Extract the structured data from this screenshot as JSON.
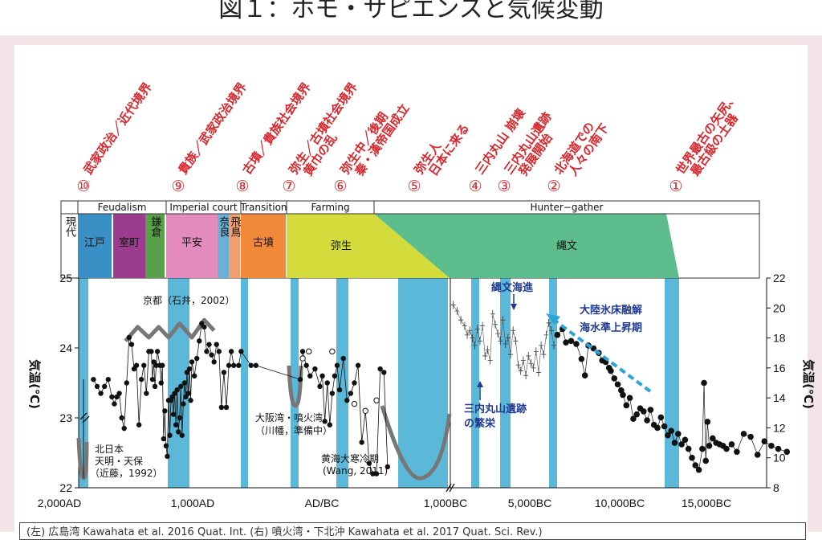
{
  "figure_title": "図１：ホモ・サピエンスと気候変動",
  "footer_text": "(左) 広島湾  Kawahata et al. 2016 Quat. Int.  (右) 噴火湾・下北沖  Kawahata et al. 2017 Quat. Sci. Rev.)",
  "colors": {
    "event_red": "#d9272e",
    "band_blue": "#5bb8d8",
    "edo": "#3a8fc4",
    "muromachi": "#9b3c8e",
    "kamakura": "#5aa04a",
    "heian": "#e48bbd",
    "nara": "#6ab0d8",
    "asuka": "#f0a070",
    "kofun": "#f08a3a",
    "yayoi": "#d3dc3a",
    "jomon": "#5ebd8c",
    "arrow_dashed": "#2aa5dc",
    "annotation_blue": "#1f3a8f",
    "curve_gray": "#777777"
  },
  "events": [
    {
      "num": "⑩",
      "label": "武家政治／近代境界"
    },
    {
      "num": "⑨",
      "label": "貴族／武家政治境界"
    },
    {
      "num": "⑧",
      "label": "古墳／貴族社会境界"
    },
    {
      "num": "⑦",
      "label": "弥生／古墳社会境界",
      "label2": "黄巾の乱"
    },
    {
      "num": "⑥",
      "label": "弥生中／後期",
      "label2": "秦・漢帝国成立"
    },
    {
      "num": "⑤",
      "label": "弥生人",
      "label2": "日本に来る"
    },
    {
      "num": "④",
      "label": "三内丸山 崩壊"
    },
    {
      "num": "③",
      "label": "三内丸山遺跡",
      "label2": "発展開始"
    },
    {
      "num": "②",
      "label": "北海道での",
      "label2": "人々の南下"
    },
    {
      "num": "①",
      "label": "世界最古の矢尻、",
      "label2": "最古級の土器"
    }
  ],
  "eras": [
    {
      "key": "Feudalism",
      "label": "Feudalism"
    },
    {
      "key": "Imperial",
      "label": "Imperial court"
    },
    {
      "key": "Transition",
      "label": "Transition"
    },
    {
      "key": "Farming",
      "label": "Farming"
    },
    {
      "key": "Hunter",
      "label": "Hunter−gather"
    }
  ],
  "periods": [
    {
      "label": "現代",
      "color_key": "none"
    },
    {
      "label": "江戸",
      "color_key": "edo"
    },
    {
      "label": "室町",
      "color_key": "muromachi"
    },
    {
      "label": "鎌倉",
      "color_key": "kamakura"
    },
    {
      "label": "平安",
      "color_key": "heian"
    },
    {
      "label": "奈良",
      "color_key": "nara"
    },
    {
      "label": "飛鳥",
      "color_key": "asuka"
    },
    {
      "label": "古墳",
      "color_key": "kofun"
    },
    {
      "label": "弥生",
      "color_key": "yayoi"
    },
    {
      "label": "縄文",
      "color_key": "jomon"
    }
  ],
  "annotations": {
    "kyoto": "京都（石井，2002）",
    "kitanihon_1": "北日本",
    "kitanihon_2": "天明・天保",
    "kitanihon_3": "（近藤，1992）",
    "osaka_1": "大阪湾・噴火湾",
    "osaka_2": "（川幡，準備中）",
    "kokai_1": "黄海大寒冷期",
    "kokai_2": "(Wang, 2011)",
    "jomon_kaishin": "縄文海進",
    "sannai_1": "三内丸山遺跡",
    "sannai_2": "の繁栄",
    "tairiku_1": "大陸氷床融解",
    "tairiku_2": "海水準上昇期"
  },
  "chart_data": {
    "type": "scatter",
    "title": "",
    "xlabel": "",
    "ylabel_left": "気温(℃)",
    "ylabel_right": "気温(℃)",
    "left_axis": {
      "ylim": [
        22,
        25
      ],
      "ticks": [
        22,
        23,
        24,
        25
      ]
    },
    "right_axis": {
      "ylim": [
        8,
        22
      ],
      "ticks": [
        8,
        10,
        12,
        14,
        16,
        18,
        20,
        22
      ]
    },
    "x_tick_labels": [
      "2,000AD",
      "1,000AD",
      "AD/BC",
      "1,000BC",
      "5,000BC",
      "10,000BC",
      "15,000BC"
    ],
    "left_panel": {
      "note": "広島湾 temperature record, x in calendar year AD (negative = BC)",
      "x_range": [
        2000,
        -1000
      ],
      "series_solid": [
        [
          1880,
          23.55
        ],
        [
          1850,
          23.45
        ],
        [
          1820,
          23.35
        ],
        [
          1790,
          23.45
        ],
        [
          1760,
          23.55
        ],
        [
          1730,
          23.3
        ],
        [
          1710,
          23.2
        ],
        [
          1690,
          23.3
        ],
        [
          1670,
          23.35
        ],
        [
          1650,
          23.0
        ],
        [
          1630,
          22.85
        ],
        [
          1610,
          23.5
        ],
        [
          1590,
          24.15
        ],
        [
          1570,
          24.05
        ],
        [
          1550,
          23.7
        ],
        [
          1530,
          23.75
        ],
        [
          1510,
          22.9
        ],
        [
          1490,
          23.55
        ],
        [
          1470,
          23.75
        ],
        [
          1450,
          23.35
        ],
        [
          1430,
          23.95
        ],
        [
          1410,
          23.95
        ],
        [
          1400,
          23.55
        ],
        [
          1390,
          23.8
        ],
        [
          1380,
          23.45
        ],
        [
          1370,
          23.75
        ],
        [
          1360,
          23.95
        ],
        [
          1340,
          23.75
        ],
        [
          1330,
          23.5
        ],
        [
          1320,
          23.75
        ],
        [
          1310,
          22.7
        ],
        [
          1300,
          23.1
        ],
        [
          1290,
          22.6
        ],
        [
          1280,
          22.45
        ],
        [
          1270,
          23.25
        ],
        [
          1260,
          22.75
        ],
        [
          1250,
          23.25
        ],
        [
          1240,
          23.3
        ],
        [
          1230,
          23.05
        ],
        [
          1220,
          23.35
        ],
        [
          1210,
          22.9
        ],
        [
          1200,
          23.4
        ],
        [
          1190,
          22.8
        ],
        [
          1180,
          23.0
        ],
        [
          1170,
          23.45
        ],
        [
          1160,
          22.75
        ],
        [
          1150,
          23.2
        ],
        [
          1140,
          23.5
        ],
        [
          1130,
          23.3
        ],
        [
          1120,
          23.65
        ],
        [
          1110,
          23.35
        ],
        [
          1100,
          23.7
        ],
        [
          1090,
          23.25
        ],
        [
          1080,
          23.8
        ],
        [
          1060,
          23.6
        ],
        [
          1040,
          23.85
        ],
        [
          1020,
          24.1
        ],
        [
          1000,
          24.35
        ],
        [
          980,
          24.3
        ],
        [
          960,
          23.95
        ],
        [
          940,
          24.05
        ],
        [
          920,
          23.9
        ],
        [
          900,
          23.8
        ],
        [
          880,
          24.05
        ],
        [
          860,
          23.95
        ],
        [
          840,
          23.15
        ],
        [
          820,
          23.65
        ],
        [
          800,
          23.15
        ],
        [
          780,
          23.75
        ],
        [
          760,
          23.95
        ],
        [
          740,
          23.75
        ],
        [
          700,
          23.75
        ],
        [
          680,
          23.95
        ],
        [
          600,
          23.75
        ],
        [
          560,
          23.75
        ],
        [
          200,
          23.55
        ],
        [
          180,
          23.95
        ],
        [
          150,
          23.75
        ],
        [
          120,
          23.6
        ],
        [
          80,
          23.7
        ],
        [
          40,
          23.45
        ],
        [
          20,
          23.6
        ],
        [
          0,
          22.95
        ],
        [
          -20,
          23.5
        ],
        [
          -40,
          22.9
        ],
        [
          -60,
          23.35
        ],
        [
          -80,
          23.6
        ],
        [
          -100,
          23.75
        ],
        [
          -120,
          23.4
        ],
        [
          -150,
          23.85
        ],
        [
          -180,
          23.25
        ],
        [
          -210,
          23.35
        ],
        [
          -240,
          23.5
        ],
        [
          -270,
          23.75
        ],
        [
          -300,
          22.65
        ],
        [
          -330,
          23.1
        ],
        [
          -360,
          22.35
        ],
        [
          -390,
          22.2
        ],
        [
          -420,
          22.2
        ],
        [
          -450,
          23.7
        ],
        [
          -480,
          23.65
        ],
        [
          -510,
          22.3
        ]
      ],
      "series_open": [
        [
          180,
          23.85
        ],
        [
          130,
          23.95
        ],
        [
          -60,
          23.95
        ],
        [
          -240,
          23.2
        ],
        [
          -330,
          23.1
        ],
        [
          -420,
          23.25
        ]
      ],
      "kyoto_line": [
        [
          1620,
          24.1
        ],
        [
          1520,
          24.3
        ],
        [
          1430,
          24.15
        ],
        [
          1350,
          24.3
        ],
        [
          1270,
          24.15
        ],
        [
          1180,
          24.35
        ],
        [
          1080,
          24.15
        ],
        [
          980,
          24.4
        ],
        [
          900,
          24.25
        ]
      ]
    },
    "right_panel": {
      "note": "噴火湾・下北沖 temperature record, x in calendar year BC, right axis",
      "x_range": [
        1000,
        20000
      ],
      "series_crosses": [
        [
          1050,
          20.2
        ],
        [
          1200,
          19.8
        ],
        [
          1350,
          19.2
        ],
        [
          1500,
          18.8
        ],
        [
          1600,
          18.2
        ],
        [
          1700,
          18.5
        ],
        [
          1800,
          18.0
        ],
        [
          1900,
          17.5
        ],
        [
          2000,
          18.6
        ],
        [
          2100,
          17.8
        ],
        [
          2200,
          18.8
        ],
        [
          2300,
          16.8
        ],
        [
          2400,
          17.2
        ],
        [
          2500,
          16.5
        ],
        [
          2600,
          19.6
        ],
        [
          2700,
          18.9
        ],
        [
          2800,
          18.3
        ],
        [
          2900,
          17.8
        ],
        [
          3000,
          19.2
        ],
        [
          3100,
          17.6
        ],
        [
          3200,
          18.0
        ],
        [
          3300,
          16.9
        ],
        [
          3400,
          18.5
        ],
        [
          3500,
          17.8
        ],
        [
          3600,
          16.2
        ],
        [
          3700,
          15.8
        ],
        [
          3800,
          16.5
        ],
        [
          3900,
          15.5
        ],
        [
          4000,
          16.8
        ],
        [
          4100,
          16.3
        ],
        [
          4200,
          16.0
        ],
        [
          4300,
          17.1
        ],
        [
          4400,
          15.7
        ],
        [
          4500,
          17.5
        ],
        [
          4600,
          16.9
        ],
        [
          4700,
          18.2
        ],
        [
          4800,
          19.0
        ],
        [
          4900,
          18.5
        ],
        [
          5000,
          17.5
        ]
      ],
      "series_solid": [
        [
          5200,
          18.2
        ],
        [
          5500,
          18.6
        ],
        [
          5700,
          17.7
        ],
        [
          6000,
          17.8
        ],
        [
          6300,
          17.6
        ],
        [
          6600,
          16.6
        ],
        [
          6800,
          15.5
        ],
        [
          7000,
          17.5
        ],
        [
          7300,
          17.3
        ],
        [
          7600,
          17.0
        ],
        [
          7800,
          16.5
        ],
        [
          8000,
          16.4
        ],
        [
          8200,
          16.0
        ],
        [
          8300,
          15.8
        ],
        [
          8500,
          15.3
        ],
        [
          8700,
          14.9
        ],
        [
          8900,
          14.5
        ],
        [
          9000,
          14.2
        ],
        [
          9200,
          13.5
        ],
        [
          9400,
          14.0
        ],
        [
          9600,
          12.6
        ],
        [
          9800,
          12.9
        ],
        [
          10000,
          13.3
        ],
        [
          10200,
          13.1
        ],
        [
          10400,
          12.5
        ],
        [
          10600,
          13.2
        ],
        [
          10800,
          12.2
        ],
        [
          11000,
          12.0
        ],
        [
          11200,
          12.7
        ],
        [
          11400,
          12.1
        ],
        [
          11600,
          11.5
        ],
        [
          11800,
          11.8
        ],
        [
          12000,
          11.0
        ],
        [
          12200,
          11.6
        ],
        [
          12400,
          10.9
        ],
        [
          12600,
          11.2
        ],
        [
          12800,
          10.6
        ],
        [
          13000,
          10.0
        ],
        [
          13200,
          9.5
        ],
        [
          13400,
          9.2
        ],
        [
          13600,
          10.6
        ],
        [
          13800,
          9.8
        ],
        [
          14000,
          10.8
        ],
        [
          14200,
          11.3
        ],
        [
          14400,
          11.0
        ],
        [
          14600,
          10.9
        ],
        [
          14800,
          10.8
        ],
        [
          15000,
          10.6
        ],
        [
          15300,
          10.9
        ],
        [
          15600,
          10.4
        ],
        [
          16000,
          11.6
        ],
        [
          16400,
          11.4
        ],
        [
          16800,
          10.2
        ],
        [
          17200,
          11.1
        ],
        [
          17600,
          10.8
        ],
        [
          18000,
          10.6
        ],
        [
          18500,
          10.4
        ],
        [
          13700,
          15.0
        ],
        [
          13900,
          12.4
        ]
      ]
    }
  }
}
